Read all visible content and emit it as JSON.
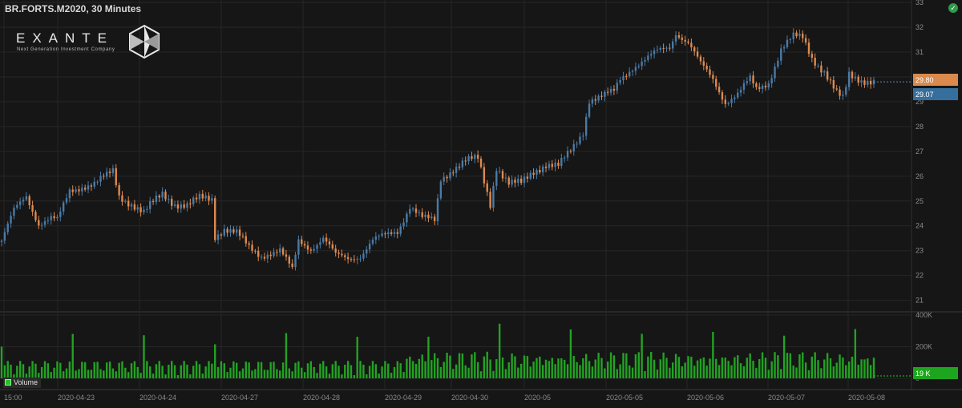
{
  "title": "BR.FORTS.M2020, 30 Minutes",
  "logo": {
    "name": "EXANTE",
    "tagline": "Next Generation Investment Company"
  },
  "status_icon": "check-circle-icon",
  "colors": {
    "up": "#4a7aa6",
    "down": "#de8a4f",
    "volume": "#22a322",
    "background": "#161616",
    "grid": "#262626"
  },
  "price_tags": [
    {
      "label": "29.80",
      "color": "#d98a4c"
    },
    {
      "label": "29.07",
      "color": "#366f9e"
    }
  ],
  "volume_tag": {
    "label": "19 K",
    "color": "#1ea51e"
  },
  "volume_legend": "Volume",
  "chart_data": [
    {
      "type": "candlestick",
      "title": "BR.FORTS.M2020, 30 Minutes",
      "y_ticks": [
        "21",
        "22",
        "23",
        "24",
        "25",
        "26",
        "27",
        "28",
        "29",
        "30",
        "31",
        "32",
        "33"
      ],
      "ylim": [
        20.6,
        33.1
      ],
      "x_ticks": [
        "15:00",
        "2020-04-23",
        "2020-04-24",
        "2020-04-27",
        "2020-04-28",
        "2020-04-29",
        "2020-04-30",
        "2020-05",
        "2020-05-05",
        "2020-05-06",
        "2020-05-07",
        "2020-05-08"
      ],
      "grid": true,
      "last_price": 29.8,
      "close_anchors": [
        [
          0,
          23.4
        ],
        [
          4,
          24.6
        ],
        [
          8,
          25.2
        ],
        [
          12,
          24.1
        ],
        [
          16,
          24.3
        ],
        [
          18,
          24.2
        ],
        [
          22,
          25.4
        ],
        [
          26,
          25.6
        ],
        [
          30,
          25.7
        ],
        [
          34,
          26.0
        ],
        [
          36,
          26.2
        ],
        [
          38,
          25.2
        ],
        [
          42,
          24.9
        ],
        [
          46,
          24.5
        ],
        [
          48,
          24.8
        ],
        [
          52,
          25.3
        ],
        [
          56,
          24.9
        ],
        [
          60,
          24.8
        ],
        [
          64,
          25.1
        ],
        [
          68,
          25.1
        ],
        [
          69,
          23.6
        ],
        [
          72,
          23.9
        ],
        [
          76,
          23.7
        ],
        [
          80,
          23.1
        ],
        [
          84,
          22.8
        ],
        [
          86,
          22.9
        ],
        [
          90,
          23.0
        ],
        [
          94,
          22.2
        ],
        [
          96,
          23.4
        ],
        [
          100,
          23.1
        ],
        [
          104,
          23.5
        ],
        [
          108,
          22.8
        ],
        [
          112,
          22.7
        ],
        [
          116,
          22.8
        ],
        [
          120,
          23.4
        ],
        [
          124,
          23.6
        ],
        [
          128,
          23.8
        ],
        [
          132,
          24.8
        ],
        [
          136,
          24.3
        ],
        [
          140,
          24.2
        ],
        [
          142,
          25.9
        ],
        [
          146,
          26.3
        ],
        [
          150,
          26.6
        ],
        [
          154,
          26.7
        ],
        [
          156,
          25.8
        ],
        [
          158,
          24.9
        ],
        [
          160,
          26.4
        ],
        [
          164,
          25.7
        ],
        [
          168,
          25.7
        ],
        [
          172,
          26.2
        ],
        [
          176,
          26.5
        ],
        [
          180,
          26.4
        ],
        [
          184,
          27.0
        ],
        [
          188,
          27.8
        ],
        [
          190,
          29.1
        ],
        [
          194,
          29.2
        ],
        [
          198,
          29.4
        ],
        [
          200,
          29.9
        ],
        [
          204,
          30.4
        ],
        [
          208,
          30.7
        ],
        [
          212,
          31.0
        ],
        [
          216,
          31.2
        ],
        [
          218,
          31.8
        ],
        [
          222,
          31.4
        ],
        [
          226,
          30.5
        ],
        [
          230,
          29.9
        ],
        [
          234,
          29.0
        ],
        [
          238,
          29.3
        ],
        [
          242,
          29.9
        ],
        [
          244,
          29.5
        ],
        [
          248,
          29.8
        ],
        [
          252,
          31.1
        ],
        [
          256,
          31.6
        ],
        [
          259,
          31.6
        ],
        [
          262,
          30.8
        ],
        [
          266,
          30.2
        ],
        [
          270,
          29.3
        ],
        [
          272,
          29.1
        ],
        [
          274,
          30.1
        ],
        [
          278,
          29.9
        ],
        [
          282,
          29.8
        ]
      ],
      "volume": {
        "name": "Volume",
        "y_ticks": [
          "0",
          "200K",
          "400K"
        ],
        "ylim": [
          0,
          400000
        ],
        "last": "19 K"
      }
    }
  ]
}
